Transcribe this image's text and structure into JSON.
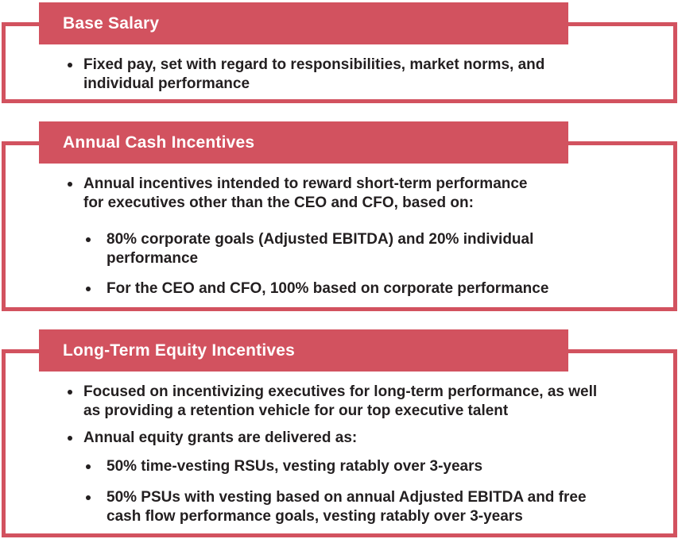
{
  "theme": {
    "accent_red": "#d2525f",
    "text_dark": "#231f20",
    "header_text": "#ffffff",
    "background": "#ffffff"
  },
  "cards": [
    {
      "title": "Base Salary",
      "bullets": [
        {
          "level": 1,
          "text": "Fixed pay, set with regard to responsibilities, market norms, and\nindividual performance"
        }
      ]
    },
    {
      "title": "Annual Cash Incentives",
      "bullets": [
        {
          "level": 1,
          "text": "Annual incentives intended to reward short-term performance\nfor executives other than the CEO and CFO, based on:"
        },
        {
          "level": 2,
          "text": "80% corporate goals (Adjusted EBITDA) and 20% individual\nperformance"
        },
        {
          "level": 2,
          "text": "For the CEO and CFO, 100% based on corporate performance"
        }
      ]
    },
    {
      "title": "Long-Term Equity Incentives",
      "bullets": [
        {
          "level": 1,
          "text": "Focused on incentivizing executives for long-term performance, as well\nas providing a retention vehicle for our top executive talent"
        },
        {
          "level": 1,
          "text": "Annual equity grants are delivered as:"
        },
        {
          "level": 2,
          "text": "50% time-vesting RSUs, vesting ratably over 3-years"
        },
        {
          "level": 2,
          "text": "50% PSUs with vesting based on annual Adjusted EBITDA and free\ncash flow performance goals, vesting ratably over 3-years"
        }
      ]
    }
  ]
}
